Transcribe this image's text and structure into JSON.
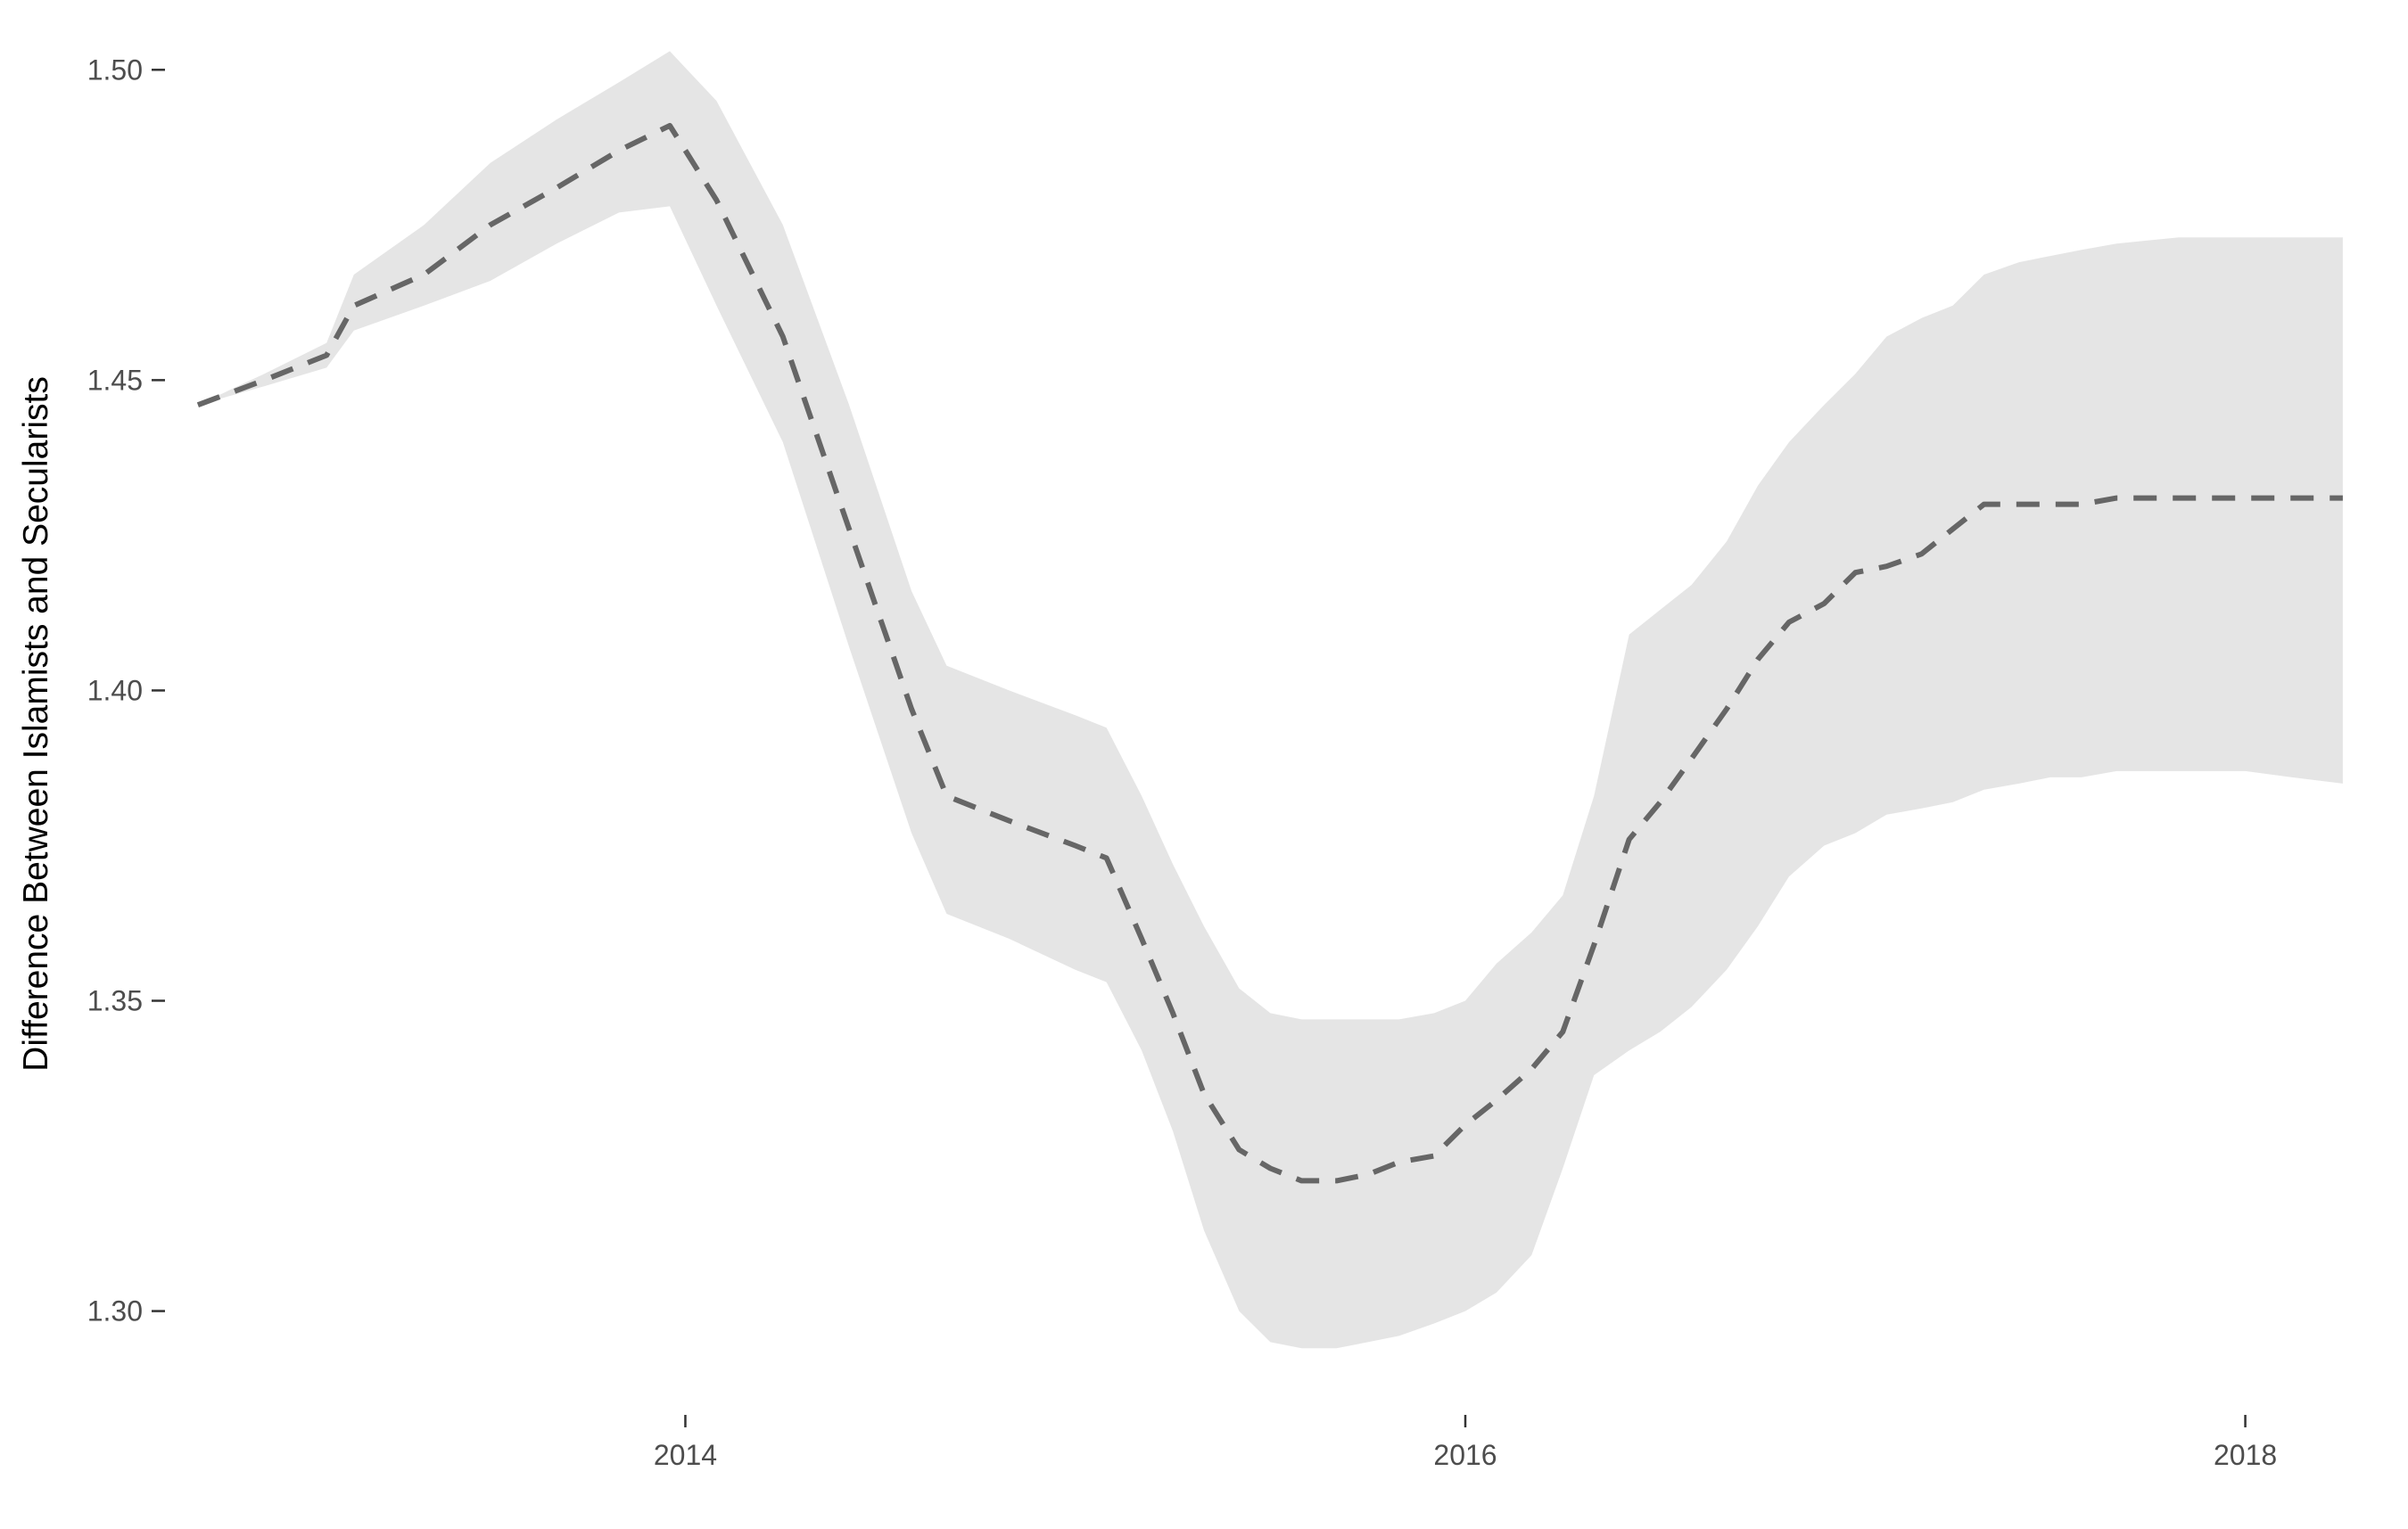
{
  "chart_data": {
    "type": "area",
    "title": "",
    "xlabel": "",
    "ylabel": "Difference Between Islamists and Secularists",
    "xlim": [
      2012.7,
      2018.28
    ],
    "ylim": [
      1.285,
      1.5055
    ],
    "x_ticks": [
      2014,
      2016,
      2018
    ],
    "x_tick_labels": [
      "2014",
      "2016",
      "2018"
    ],
    "y_ticks": [
      1.3,
      1.35,
      1.4,
      1.45,
      1.5
    ],
    "y_tick_labels": [
      "1.30",
      "1.35",
      "1.40",
      "1.45",
      "1.50"
    ],
    "grid": false,
    "legend": "none",
    "series": [
      {
        "style": "dashed",
        "color": "#666666",
        "x": [
          2012.75,
          2012.92,
          2013.08,
          2013.15,
          2013.33,
          2013.5,
          2013.67,
          2013.83,
          2013.96,
          2014.08,
          2014.25,
          2014.42,
          2014.58,
          2014.67,
          2014.83,
          2015.0,
          2015.08,
          2015.17,
          2015.25,
          2015.33,
          2015.42,
          2015.5,
          2015.58,
          2015.67,
          2015.75,
          2015.83,
          2015.92,
          2016.0,
          2016.08,
          2016.17,
          2016.25,
          2016.33,
          2016.42,
          2016.5,
          2016.58,
          2016.67,
          2016.75,
          2016.83,
          2016.92,
          2017.0,
          2017.08,
          2017.17,
          2017.25,
          2017.33,
          2017.42,
          2017.5,
          2017.58,
          2017.67,
          2017.83,
          2018.0,
          2018.12,
          2018.25
        ],
        "y": [
          1.446,
          1.45,
          1.454,
          1.462,
          1.467,
          1.475,
          1.481,
          1.487,
          1.491,
          1.479,
          1.457,
          1.426,
          1.397,
          1.383,
          1.379,
          1.375,
          1.373,
          1.36,
          1.348,
          1.335,
          1.326,
          1.323,
          1.321,
          1.321,
          1.322,
          1.324,
          1.325,
          1.33,
          1.334,
          1.339,
          1.345,
          1.359,
          1.376,
          1.382,
          1.389,
          1.397,
          1.405,
          1.411,
          1.414,
          1.419,
          1.42,
          1.422,
          1.426,
          1.43,
          1.43,
          1.43,
          1.43,
          1.431,
          1.431,
          1.431,
          1.431,
          1.431
        ]
      },
      {
        "style": "ribbon-upper",
        "color": "#e5e5e5",
        "x": [
          2012.75,
          2012.92,
          2013.08,
          2013.15,
          2013.33,
          2013.5,
          2013.67,
          2013.83,
          2013.96,
          2014.08,
          2014.25,
          2014.42,
          2014.58,
          2014.67,
          2014.83,
          2015.0,
          2015.08,
          2015.17,
          2015.25,
          2015.33,
          2015.42,
          2015.5,
          2015.58,
          2015.67,
          2015.75,
          2015.83,
          2015.92,
          2016.0,
          2016.08,
          2016.17,
          2016.25,
          2016.33,
          2016.42,
          2016.5,
          2016.58,
          2016.67,
          2016.75,
          2016.83,
          2016.92,
          2017.0,
          2017.08,
          2017.17,
          2017.25,
          2017.33,
          2017.42,
          2017.5,
          2017.58,
          2017.67,
          2017.83,
          2018.0,
          2018.12,
          2018.25
        ],
        "y": [
          1.446,
          1.451,
          1.456,
          1.467,
          1.475,
          1.485,
          1.492,
          1.498,
          1.503,
          1.495,
          1.475,
          1.446,
          1.416,
          1.404,
          1.4,
          1.396,
          1.394,
          1.383,
          1.372,
          1.362,
          1.352,
          1.348,
          1.347,
          1.347,
          1.347,
          1.347,
          1.348,
          1.35,
          1.356,
          1.361,
          1.367,
          1.383,
          1.409,
          1.413,
          1.417,
          1.424,
          1.433,
          1.44,
          1.446,
          1.451,
          1.457,
          1.46,
          1.462,
          1.467,
          1.469,
          1.47,
          1.471,
          1.472,
          1.473,
          1.473,
          1.473,
          1.473
        ]
      },
      {
        "style": "ribbon-lower",
        "color": "#e5e5e5",
        "x": [
          2012.75,
          2012.92,
          2013.08,
          2013.15,
          2013.33,
          2013.5,
          2013.67,
          2013.83,
          2013.96,
          2014.08,
          2014.25,
          2014.42,
          2014.58,
          2014.67,
          2014.83,
          2015.0,
          2015.08,
          2015.17,
          2015.25,
          2015.33,
          2015.42,
          2015.5,
          2015.58,
          2015.67,
          2015.75,
          2015.83,
          2015.92,
          2016.0,
          2016.08,
          2016.17,
          2016.25,
          2016.33,
          2016.42,
          2016.5,
          2016.58,
          2016.67,
          2016.75,
          2016.83,
          2016.92,
          2017.0,
          2017.08,
          2017.17,
          2017.25,
          2017.33,
          2017.42,
          2017.5,
          2017.58,
          2017.67,
          2017.83,
          2018.0,
          2018.12,
          2018.25
        ],
        "y": [
          1.446,
          1.449,
          1.452,
          1.458,
          1.462,
          1.466,
          1.472,
          1.477,
          1.478,
          1.462,
          1.44,
          1.407,
          1.377,
          1.364,
          1.36,
          1.355,
          1.353,
          1.342,
          1.329,
          1.313,
          1.3,
          1.295,
          1.294,
          1.294,
          1.295,
          1.296,
          1.298,
          1.3,
          1.303,
          1.309,
          1.323,
          1.338,
          1.342,
          1.345,
          1.349,
          1.355,
          1.362,
          1.37,
          1.375,
          1.377,
          1.38,
          1.381,
          1.382,
          1.384,
          1.385,
          1.386,
          1.386,
          1.387,
          1.387,
          1.387,
          1.386,
          1.385
        ]
      }
    ]
  }
}
